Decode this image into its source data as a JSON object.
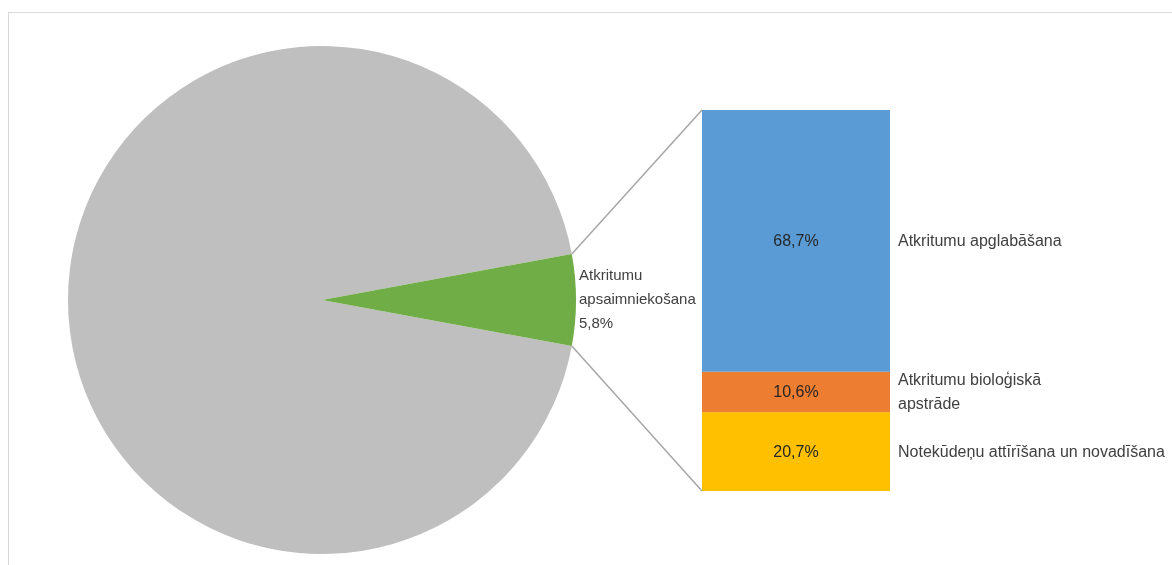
{
  "chart_data": [
    {
      "type": "pie",
      "categories": [
        null,
        "Atkritumu apsaimniekošana"
      ],
      "values": [
        94.2,
        5.8
      ],
      "colors": [
        "#bfbfbf",
        "#70ad47"
      ],
      "value_labels": [
        null,
        "5,8%"
      ]
    },
    {
      "type": "bar",
      "stacked": true,
      "categories": [
        null
      ],
      "series": [
        {
          "name": "Notekūdeņu attīrīšana un novadīšana",
          "color": "#ffc000",
          "values": [
            20.7
          ],
          "value_labels": [
            "20,7%"
          ]
        },
        {
          "name": "Atkritumu bioloģiskā apstrāde",
          "color": "#ed7d31",
          "values": [
            10.6
          ],
          "value_labels": [
            "10,6%"
          ]
        },
        {
          "name": "Atkritumu apglabāšana",
          "color": "#5b9bd5",
          "values": [
            68.7
          ],
          "value_labels": [
            "68,7%"
          ]
        }
      ]
    }
  ]
}
